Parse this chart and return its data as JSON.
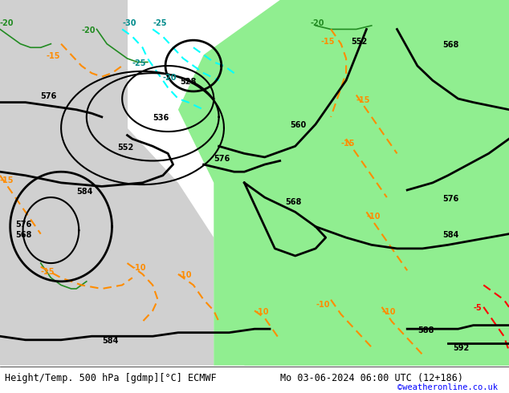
{
  "title_left": "Height/Temp. 500 hPa [gdmp][°C] ECMWF",
  "title_right": "Mo 03-06-2024 06:00 UTC (12+186)",
  "credit": "©weatheronline.co.uk",
  "bg_color_land_low": "#d3d3d3",
  "bg_color_land_high": "#90ee90",
  "bg_color_sea": "#d3d3d3",
  "contour_color_z500": "#000000",
  "contour_color_temp_warm": "#ff8c00",
  "contour_color_temp_cold": "#00008b",
  "contour_color_trough": "#00ced1",
  "label_color_left": "#000000",
  "label_color_right": "#000000",
  "credit_color": "#0000ff",
  "figsize": [
    6.34,
    4.9
  ],
  "dpi": 100
}
